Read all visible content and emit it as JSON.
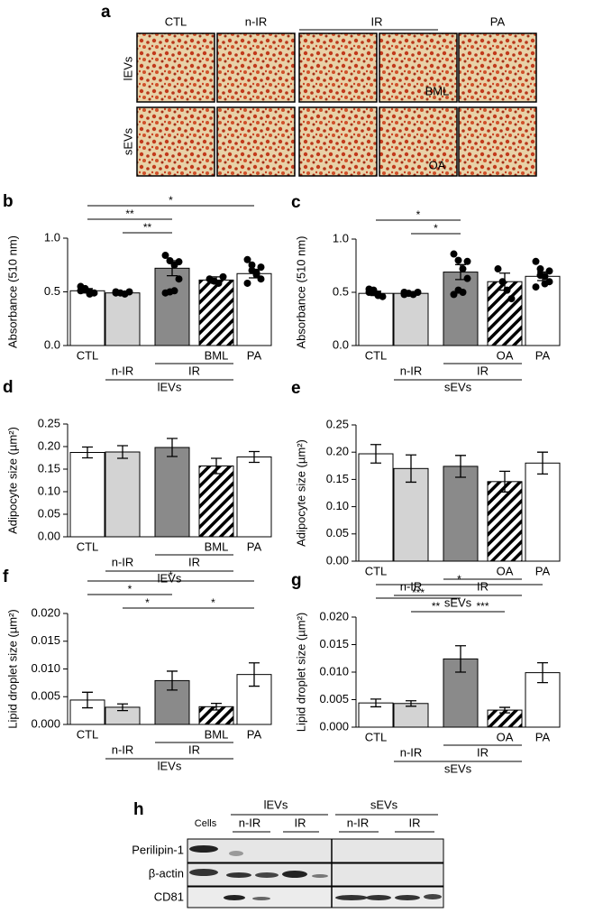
{
  "panel_a": {
    "letter": "a",
    "columns": [
      "CTL",
      "n-IR",
      "IR",
      "PA"
    ],
    "rows": [
      "lEVs",
      "sEVs"
    ],
    "insets": [
      "BML",
      "OA"
    ]
  },
  "chart_data": [
    {
      "type": "bar",
      "panel": "b",
      "y_label": "Absorbance (510 nm)",
      "categories": [
        "CTL",
        "n-IR",
        "IR",
        "BML",
        "PA"
      ],
      "group_label": "lEVs",
      "values": [
        0.51,
        0.49,
        0.72,
        0.61,
        0.67
      ],
      "errors": [
        0.02,
        0.01,
        0.07,
        0.03,
        0.04
      ],
      "points": [
        [
          0.55,
          0.52,
          0.5,
          0.49,
          0.51,
          0.53,
          0.48
        ],
        [
          0.5,
          0.49,
          0.48,
          0.5,
          0.49
        ],
        [
          0.84,
          0.79,
          0.75,
          0.62,
          0.49,
          0.5,
          0.51,
          0.78
        ],
        [
          0.62,
          0.6,
          0.58,
          0.64
        ],
        [
          0.8,
          0.75,
          0.68,
          0.62,
          0.58,
          0.7,
          0.66,
          0.73
        ]
      ],
      "colors": [
        "#ffffff",
        "#d3d3d3",
        "#8a8a8a",
        "hatch",
        "#ffffff"
      ],
      "ylim": [
        0,
        1.0
      ],
      "yticks": [
        {
          "value": 0,
          "label": "0.0"
        },
        0.5,
        {
          "value": 1,
          "label": "1.0"
        }
      ],
      "brackets": [
        {
          "from": "n-IR",
          "to": "IR",
          "label": "**"
        },
        {
          "from": "CTL",
          "to": "IR",
          "label": "**"
        },
        {
          "from": "CTL",
          "to": "PA",
          "label": "*"
        }
      ]
    },
    {
      "type": "bar",
      "panel": "c",
      "y_label": "Absorbance (510 nm)",
      "categories": [
        "CTL",
        "n-IR",
        "IR",
        "OA",
        "PA"
      ],
      "group_label": "sEVs",
      "values": [
        0.49,
        0.49,
        0.69,
        0.6,
        0.65
      ],
      "errors": [
        0.02,
        0.01,
        0.07,
        0.08,
        0.04
      ],
      "points": [
        [
          0.53,
          0.5,
          0.48,
          0.46,
          0.5,
          0.52,
          0.47
        ],
        [
          0.5,
          0.49,
          0.48,
          0.5,
          0.48
        ],
        [
          0.86,
          0.8,
          0.72,
          0.63,
          0.48,
          0.52,
          0.5,
          0.79
        ],
        [
          0.72,
          0.6,
          0.52,
          0.44
        ],
        [
          0.79,
          0.72,
          0.65,
          0.6,
          0.55,
          0.66,
          0.58,
          0.7
        ]
      ],
      "colors": [
        "#ffffff",
        "#d3d3d3",
        "#8a8a8a",
        "hatch",
        "#ffffff"
      ],
      "ylim": [
        0,
        1.0
      ],
      "yticks": [
        {
          "value": 0,
          "label": "0.0"
        },
        0.5,
        {
          "value": 1,
          "label": "1.0"
        }
      ],
      "brackets": [
        {
          "from": "n-IR",
          "to": "IR",
          "label": "*"
        },
        {
          "from": "CTL",
          "to": "IR",
          "label": "*"
        }
      ]
    },
    {
      "type": "bar",
      "panel": "d",
      "y_label": "Adipocyte size (µm²)",
      "categories": [
        "CTL",
        "n-IR",
        "IR",
        "BML",
        "PA"
      ],
      "group_label": "lEVs",
      "values": [
        0.187,
        0.188,
        0.198,
        0.157,
        0.177
      ],
      "errors": [
        0.012,
        0.014,
        0.02,
        0.017,
        0.012
      ],
      "colors": [
        "#ffffff",
        "#d3d3d3",
        "#8a8a8a",
        "hatch",
        "#ffffff"
      ],
      "ylim": [
        0,
        0.25
      ],
      "yticks": [
        {
          "value": 0,
          "label": "0.00"
        },
        0.05,
        {
          "value": 0.1,
          "label": "0.10"
        },
        0.15,
        {
          "value": 0.2,
          "label": "0.20"
        },
        0.25
      ]
    },
    {
      "type": "bar",
      "panel": "e",
      "y_label": "Adipocyte size (µm²)",
      "categories": [
        "CTL",
        "n-IR",
        "IR",
        "OA",
        "PA"
      ],
      "group_label": "sEVs",
      "values": [
        0.197,
        0.17,
        0.174,
        0.146,
        0.18
      ],
      "errors": [
        0.017,
        0.025,
        0.02,
        0.019,
        0.02
      ],
      "colors": [
        "#ffffff",
        "#d3d3d3",
        "#8a8a8a",
        "hatch",
        "#ffffff"
      ],
      "ylim": [
        0,
        0.25
      ],
      "yticks": [
        {
          "value": 0,
          "label": "0.00"
        },
        0.05,
        {
          "value": 0.1,
          "label": "0.10"
        },
        0.15,
        {
          "value": 0.2,
          "label": "0.20"
        },
        0.25
      ]
    },
    {
      "type": "bar",
      "panel": "f",
      "y_label": "Lipid droplet size (µm²)",
      "categories": [
        "CTL",
        "n-IR",
        "IR",
        "BML",
        "PA"
      ],
      "group_label": "lEVs",
      "values": [
        0.0044,
        0.0031,
        0.0079,
        0.0032,
        0.009
      ],
      "errors": [
        0.0014,
        0.0006,
        0.0017,
        0.0006,
        0.0021
      ],
      "colors": [
        "#ffffff",
        "#d3d3d3",
        "#8a8a8a",
        "hatch",
        "#ffffff"
      ],
      "ylim": [
        0,
        0.02
      ],
      "yticks": [
        {
          "value": 0,
          "label": "0.000"
        },
        0.005,
        {
          "value": 0.01,
          "label": "0.010"
        },
        0.015,
        {
          "value": 0.02,
          "label": "0.020"
        }
      ],
      "brackets": [
        {
          "from": "n-IR",
          "to": "IR",
          "label": "*"
        },
        {
          "from": "CTL",
          "to": "IR",
          "label": "*"
        },
        {
          "from": "IR",
          "to": "PA",
          "label": "*"
        },
        {
          "from": "CTL",
          "to": "PA",
          "label": "*"
        }
      ]
    },
    {
      "type": "bar",
      "panel": "g",
      "y_label": "Lipid droplet size (µm²)",
      "categories": [
        "CTL",
        "n-IR",
        "IR",
        "OA",
        "PA"
      ],
      "group_label": "sEVs",
      "values": [
        0.0044,
        0.0043,
        0.0124,
        0.0031,
        0.0099
      ],
      "errors": [
        0.0007,
        0.0005,
        0.0024,
        0.0005,
        0.0018
      ],
      "colors": [
        "#ffffff",
        "#d3d3d3",
        "#8a8a8a",
        "hatch",
        "#ffffff"
      ],
      "ylim": [
        0,
        0.02
      ],
      "yticks": [
        {
          "value": 0,
          "label": "0.000"
        },
        0.005,
        {
          "value": 0.01,
          "label": "0.010"
        },
        0.015,
        {
          "value": 0.02,
          "label": "0.020"
        }
      ],
      "brackets": [
        {
          "from": "n-IR",
          "to": "IR",
          "label": "**"
        },
        {
          "from": "CTL",
          "to": "IR",
          "label": "***"
        },
        {
          "from": "IR",
          "to": "OA",
          "label": "***"
        },
        {
          "from": "CTL",
          "to": "PA",
          "label": "*"
        }
      ]
    }
  ],
  "panel_h": {
    "letter": "h",
    "lanes": "Cells",
    "groups": [
      "lEVs",
      "sEVs"
    ],
    "subgroups": [
      "n-IR",
      "IR",
      "n-IR",
      "IR"
    ],
    "proteins": [
      "Perilipin-1",
      "β-actin",
      "CD81"
    ]
  }
}
